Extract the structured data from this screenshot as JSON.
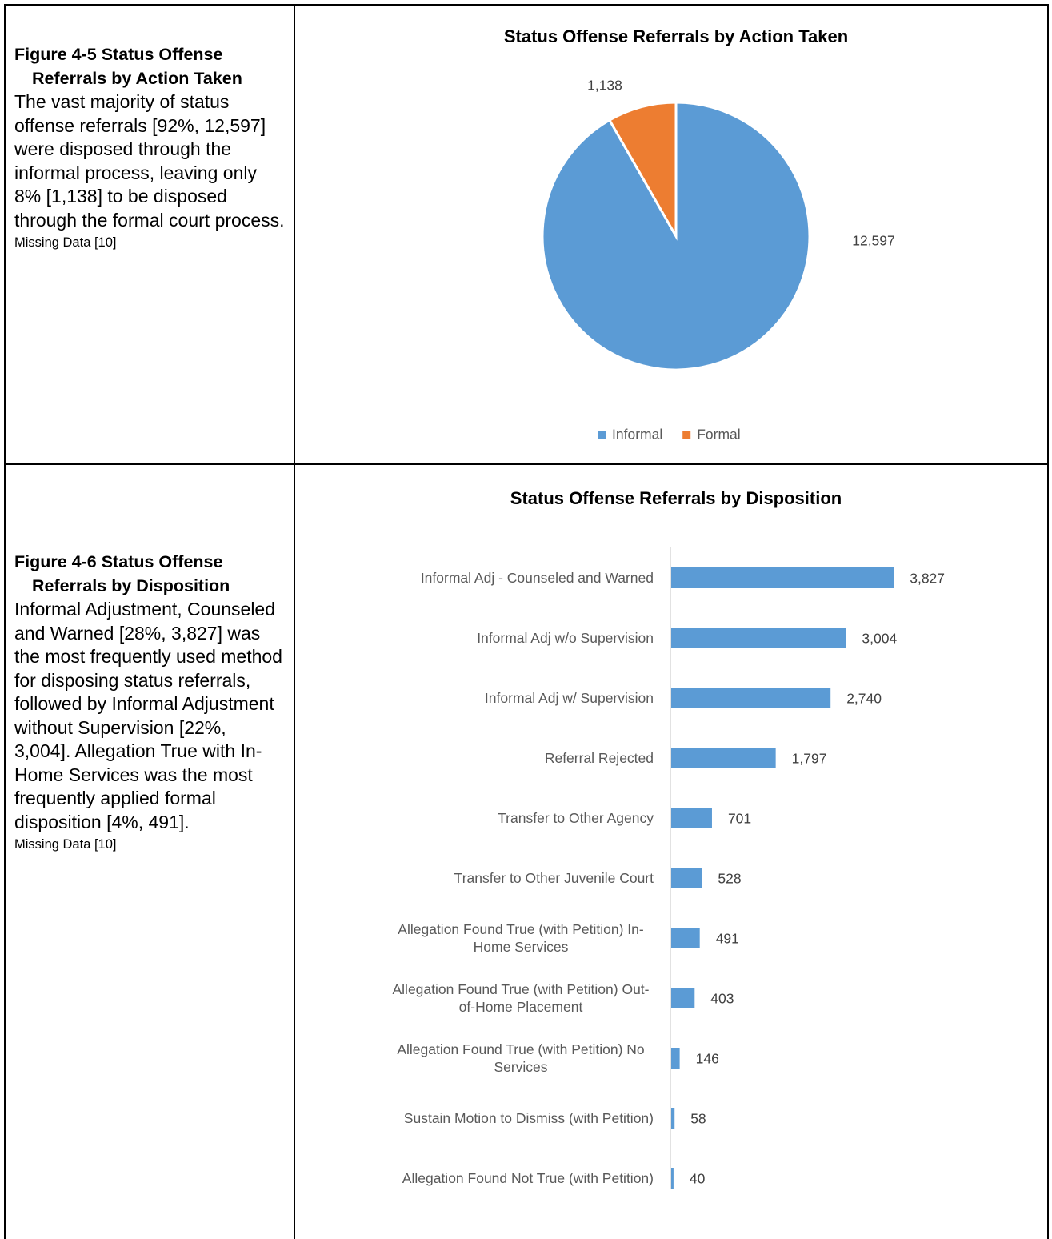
{
  "captions": [
    {
      "heading": "Figure 4-5 Status Offense Referrals by Action Taken",
      "body": "The vast majority of status offense referrals [92%, 12,597] were disposed through the informal process, leaving only 8% [1,138] to be disposed through the formal court process.",
      "note": "Missing Data [10]"
    },
    {
      "heading": "Figure 4-6 Status Offense Referrals by Disposition",
      "body": "Informal Adjustment, Counseled and Warned [28%, 3,827] was the most frequently used method for disposing status referrals, followed by Informal Adjustment without Supervision [22%, 3,004]. Allegation True with In-Home Services was the most frequently applied formal disposition [4%, 491].",
      "note": "Missing Data [10]"
    }
  ],
  "chart_data": [
    {
      "type": "pie",
      "title": "Status Offense Referrals by Action Taken",
      "categories": [
        "Informal",
        "Formal"
      ],
      "values": [
        12597,
        1138
      ],
      "value_labels": [
        "12,597",
        "1,138"
      ],
      "colors": [
        "#5b9bd5",
        "#ed7d31"
      ],
      "legend": "bottom"
    },
    {
      "type": "barh",
      "title": "Status Offense Referrals by Disposition",
      "categories": [
        "Informal Adj - Counseled and Warned",
        "Informal Adj w/o Supervision",
        "Informal Adj w/ Supervision",
        "Referral Rejected",
        "Transfer to Other Agency",
        "Transfer to Other Juvenile Court",
        "Allegation Found True (with Petition) In-Home Services",
        "Allegation Found True (with Petition) Out-of-Home Placement",
        "Allegation Found True (with Petition) No Services",
        "Sustain Motion to Dismiss (with Petition)",
        "Allegation Found Not True (with Petition)"
      ],
      "values": [
        3827,
        3004,
        2740,
        1797,
        701,
        528,
        491,
        403,
        146,
        58,
        40
      ],
      "value_labels": [
        "3,827",
        "3,004",
        "2,740",
        "1,797",
        "701",
        "528",
        "491",
        "403",
        "146",
        "58",
        "40"
      ],
      "color": "#5b9bd5",
      "xlim": [
        0,
        5000
      ]
    }
  ]
}
